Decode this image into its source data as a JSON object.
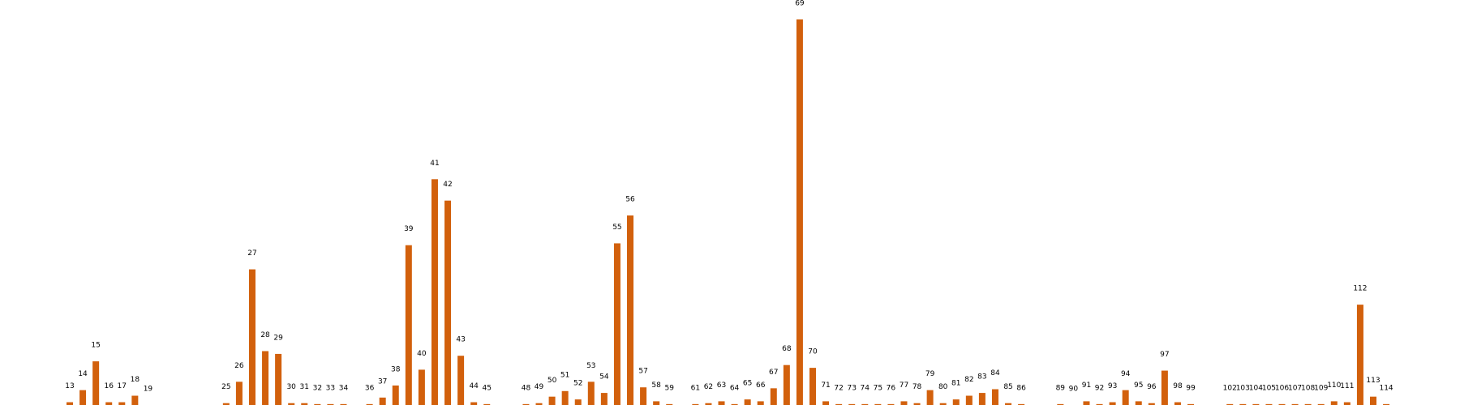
{
  "chart_data": {
    "type": "bar",
    "color": "#d2600c",
    "categories": [
      "13",
      "14",
      "15",
      "16",
      "17",
      "18",
      "19",
      null,
      null,
      null,
      null,
      null,
      "25",
      "26",
      "27",
      "28",
      "29",
      "30",
      "31",
      "32",
      "33",
      "34",
      null,
      "36",
      "37",
      "38",
      "39",
      "40",
      "41",
      "42",
      "43",
      "44",
      "45",
      null,
      null,
      "48",
      "49",
      "50",
      "51",
      "52",
      "53",
      "54",
      "55",
      "56",
      "57",
      "58",
      "59",
      null,
      "61",
      "62",
      "63",
      "64",
      "65",
      "66",
      "67",
      "68",
      "69",
      "70",
      "71",
      "72",
      "73",
      "74",
      "75",
      "76",
      "77",
      "78",
      "79",
      "80",
      "81",
      "82",
      "83",
      "84",
      "85",
      "86",
      null,
      null,
      "89",
      "90",
      "91",
      "92",
      "93",
      "94",
      "95",
      "96",
      "97",
      "98",
      "99",
      null,
      null,
      "102",
      "103",
      "104",
      "105",
      "106",
      "107",
      "108",
      "109",
      "110",
      "111",
      "112",
      "113",
      "114"
    ],
    "values": [
      3,
      16,
      47,
      3,
      3,
      10,
      0,
      null,
      null,
      null,
      null,
      null,
      2,
      25,
      146,
      58,
      55,
      2,
      2,
      1,
      1,
      1,
      null,
      1,
      8,
      21,
      172,
      38,
      243,
      220,
      53,
      3,
      1,
      null,
      null,
      1,
      2,
      9,
      15,
      6,
      25,
      13,
      174,
      204,
      19,
      4,
      1,
      null,
      1,
      2,
      4,
      1,
      6,
      4,
      18,
      43,
      415,
      40,
      4,
      1,
      1,
      1,
      1,
      1,
      4,
      2,
      16,
      2,
      6,
      10,
      13,
      17,
      2,
      1,
      null,
      null,
      1,
      0,
      4,
      1,
      3,
      16,
      4,
      2,
      37,
      3,
      1,
      null,
      null,
      1,
      1,
      1,
      1,
      1,
      1,
      1,
      1,
      4,
      3,
      108,
      9,
      1
    ]
  }
}
